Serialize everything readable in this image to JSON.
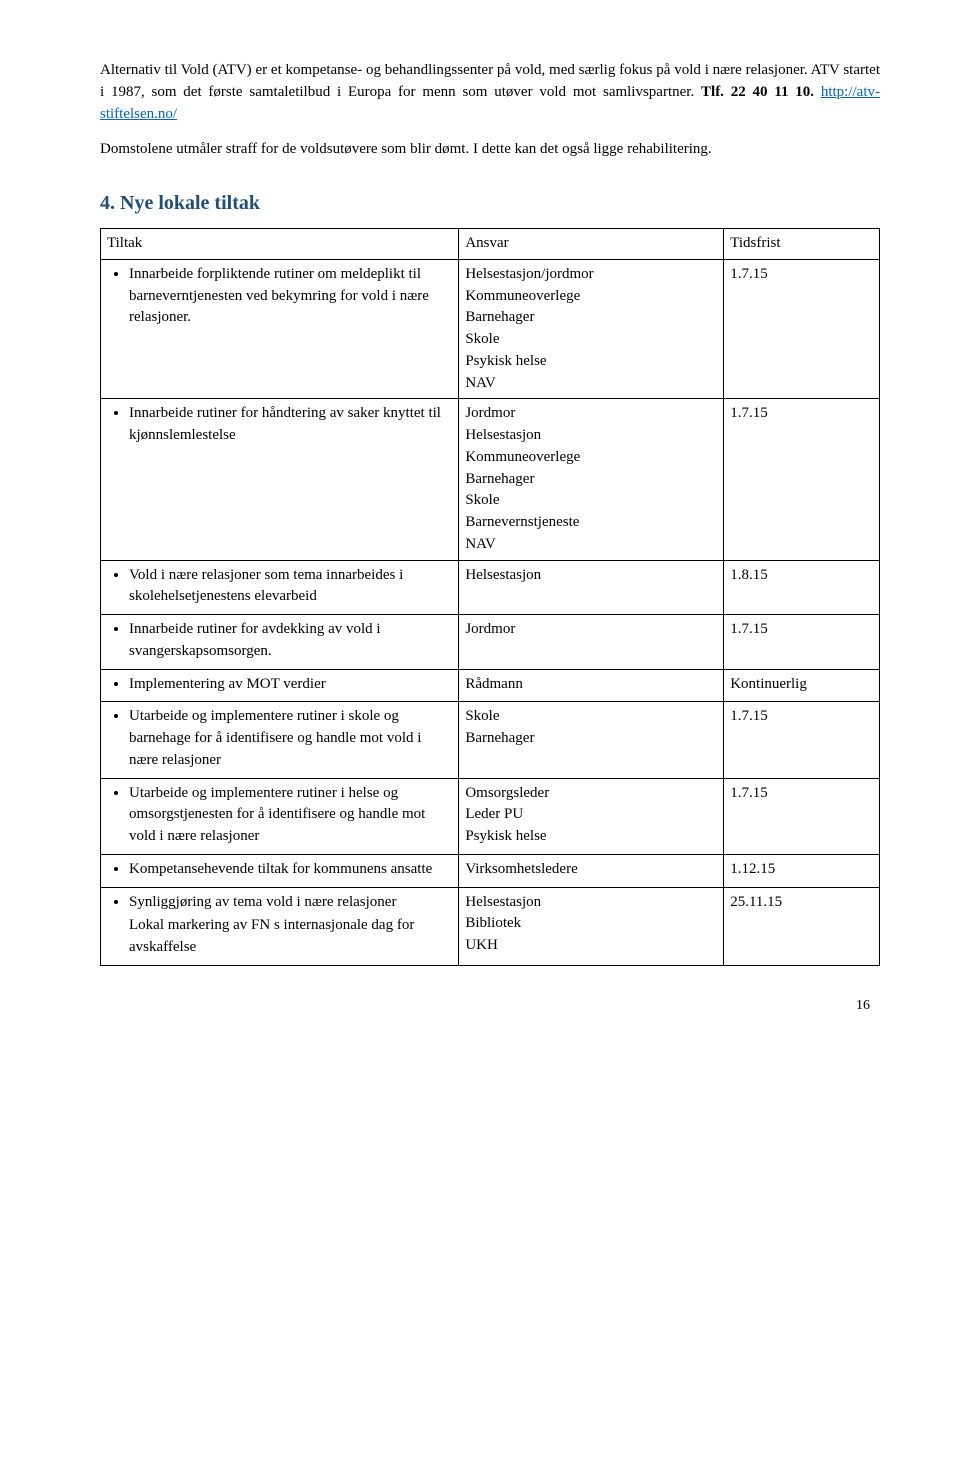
{
  "intro": {
    "p1_a": "Alternativ til Vold (ATV) er et kompetanse- og behandlingssenter på vold, med særlig fokus på vold i nære relasjoner. ATV startet i 1987, som det første samtaletilbud i Europa for menn som utøver vold mot samlivspartner. ",
    "p1_bold": "Tlf. 22 40 11 10. ",
    "p1_link": "http://atv-stiftelsen.no/",
    "p2": "Domstolene utmåler straff for de voldsutøvere som blir dømt. I dette kan det også ligge rehabilitering."
  },
  "section_title": "4. Nye lokale tiltak",
  "table": {
    "headers": [
      "Tiltak",
      "Ansvar",
      "Tidsfrist"
    ],
    "rows": [
      {
        "bullets": [
          "Innarbeide forpliktende rutiner om meldeplikt til barneverntjenesten ved bekymring for vold i nære relasjoner."
        ],
        "ansvar": [
          "Helsestasjon/jordmor",
          "Kommuneoverlege",
          "Barnehager",
          "Skole",
          "Psykisk helse",
          "NAV"
        ],
        "frist": "1.7.15"
      },
      {
        "bullets": [
          "Innarbeide rutiner for håndtering av saker knyttet til kjønnslemlestelse"
        ],
        "ansvar": [
          "Jordmor",
          "Helsestasjon",
          "Kommuneoverlege",
          "Barnehager",
          "Skole",
          "Barnevernstjeneste",
          "NAV"
        ],
        "frist": "1.7.15"
      },
      {
        "bullets": [
          "Vold i nære relasjoner som tema innarbeides i skolehelsetjenestens elevarbeid"
        ],
        "ansvar": [
          "Helsestasjon"
        ],
        "frist": "1.8.15"
      },
      {
        "bullets": [
          "Innarbeide rutiner for avdekking av vold i svangerskapsomsorgen."
        ],
        "ansvar": [
          "Jordmor"
        ],
        "frist": "1.7.15"
      },
      {
        "bullets": [
          "Implementering av MOT verdier"
        ],
        "ansvar": [
          "Rådmann"
        ],
        "frist": "Kontinuerlig"
      },
      {
        "bullets": [
          "Utarbeide og implementere rutiner i skole og barnehage for å identifisere og handle mot vold i nære relasjoner"
        ],
        "ansvar": [
          "Skole",
          "Barnehager"
        ],
        "frist": "1.7.15"
      },
      {
        "bullets": [
          "Utarbeide og implementere rutiner i helse og omsorgstjenesten for å identifisere og handle mot vold i nære relasjoner"
        ],
        "ansvar": [
          "Omsorgsleder",
          "Leder PU",
          "Psykisk helse"
        ],
        "frist": "1.7.15"
      },
      {
        "bullets": [
          "Kompetansehevende tiltak for kommunens ansatte"
        ],
        "ansvar": [
          "Virksomhetsledere"
        ],
        "frist": "1.12.15"
      },
      {
        "bullets": [
          "Synliggjøring av tema vold i nære relasjoner",
          "Lokal markering av FN s internasjonale dag for avskaffelse"
        ],
        "bullet_mode": "single",
        "ansvar": [
          "Helsestasjon",
          "Bibliotek",
          "UKH"
        ],
        "frist": "25.11.15"
      }
    ]
  },
  "page_number": "16"
}
